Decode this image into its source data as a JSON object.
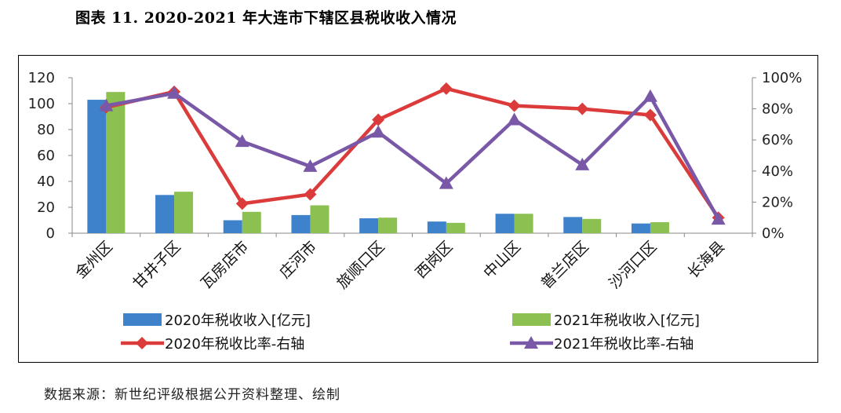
{
  "page": {
    "title": "图表 11. 2020-2021 年大连市下辖区县税收收入情况",
    "source": "数据来源：新世纪评级根据公开资料整理、绘制"
  },
  "chart_data": {
    "type": "bar",
    "categories": [
      "金州区",
      "甘井子区",
      "瓦房店市",
      "庄河市",
      "旅顺口区",
      "西岗区",
      "中山区",
      "普兰店区",
      "沙河口区",
      "长海县"
    ],
    "series": [
      {
        "name": "2020年税收收入[亿元]",
        "type": "bar",
        "axis": "left",
        "color": "#3F82CC",
        "values": [
          103,
          29.5,
          10,
          14,
          11.5,
          9,
          15,
          12.5,
          7.5,
          0
        ]
      },
      {
        "name": "2021年税收收入[亿元]",
        "type": "bar",
        "axis": "left",
        "color": "#8CC152",
        "values": [
          109,
          32,
          16.5,
          21.5,
          12,
          8,
          15,
          11,
          8.5,
          0
        ]
      },
      {
        "name": "2020年税收比率-右轴",
        "type": "line",
        "axis": "right",
        "color": "#DC3B3B",
        "marker": "diamond",
        "values": [
          81,
          91,
          19,
          25,
          73,
          93,
          82,
          80,
          76,
          10
        ]
      },
      {
        "name": "2021年税收比率-右轴",
        "type": "line",
        "axis": "right",
        "color": "#7A58A8",
        "marker": "triangle",
        "values": [
          82,
          90,
          59,
          43,
          65,
          32,
          73,
          44,
          88,
          9
        ]
      }
    ],
    "y_left": {
      "min": 0,
      "max": 120,
      "ticks": [
        "0",
        "20",
        "40",
        "60",
        "80",
        "100",
        "120"
      ]
    },
    "y_right": {
      "min": 0,
      "max": 100,
      "ticks": [
        "0%",
        "20%",
        "40%",
        "60%",
        "80%",
        "100%"
      ]
    },
    "legend_position": "bottom",
    "grid": false
  }
}
